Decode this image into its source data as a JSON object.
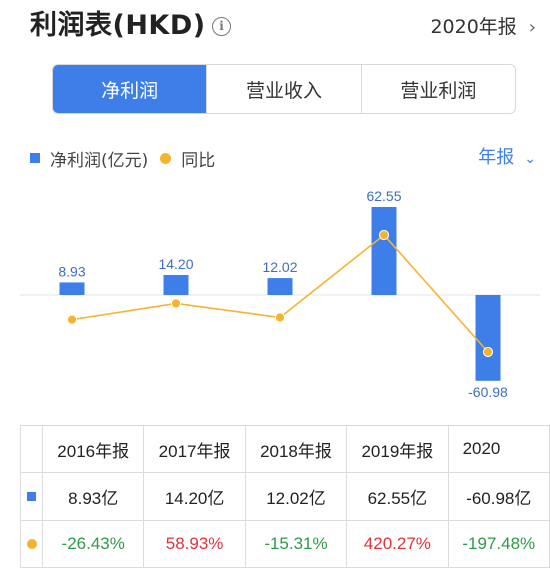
{
  "header": {
    "title": "利润表(HKD)",
    "info_icon": "info-icon",
    "period_label": "2020年报",
    "chevron": "›"
  },
  "tabs": [
    {
      "label": "净利润",
      "active": true
    },
    {
      "label": "营业收入",
      "active": false
    },
    {
      "label": "营业利润",
      "active": false
    }
  ],
  "legend": {
    "bar_series": "净利润(亿元)",
    "line_series": "同比"
  },
  "frequency": {
    "label": "年报",
    "chevron": "⌄"
  },
  "colors": {
    "accent": "#3d7ee9",
    "line": "#f5b430",
    "positive_growth": "#e0343a",
    "negative_growth": "#2e9a4a"
  },
  "chart_data": {
    "type": "bar",
    "categories": [
      "2016年报",
      "2017年报",
      "2018年报",
      "2019年报",
      "2020年报"
    ],
    "series": [
      {
        "name": "净利润(亿元)",
        "type": "bar",
        "values": [
          8.93,
          14.2,
          12.02,
          62.55,
          -60.98
        ],
        "labels": [
          "8.93",
          "14.20",
          "12.02",
          "62.55",
          "-60.98"
        ]
      },
      {
        "name": "同比",
        "type": "line",
        "values": [
          -26.43,
          58.93,
          -15.31,
          420.27,
          -197.48
        ]
      }
    ]
  },
  "table": {
    "headers": [
      "2016年报",
      "2017年报",
      "2018年报",
      "2019年报",
      "2020"
    ],
    "net_profit": [
      "8.93亿",
      "14.20亿",
      "12.02亿",
      "62.55亿",
      "-60.98亿"
    ],
    "yoy": [
      "-26.43%",
      "58.93%",
      "-15.31%",
      "420.27%",
      "-197.48%"
    ]
  }
}
